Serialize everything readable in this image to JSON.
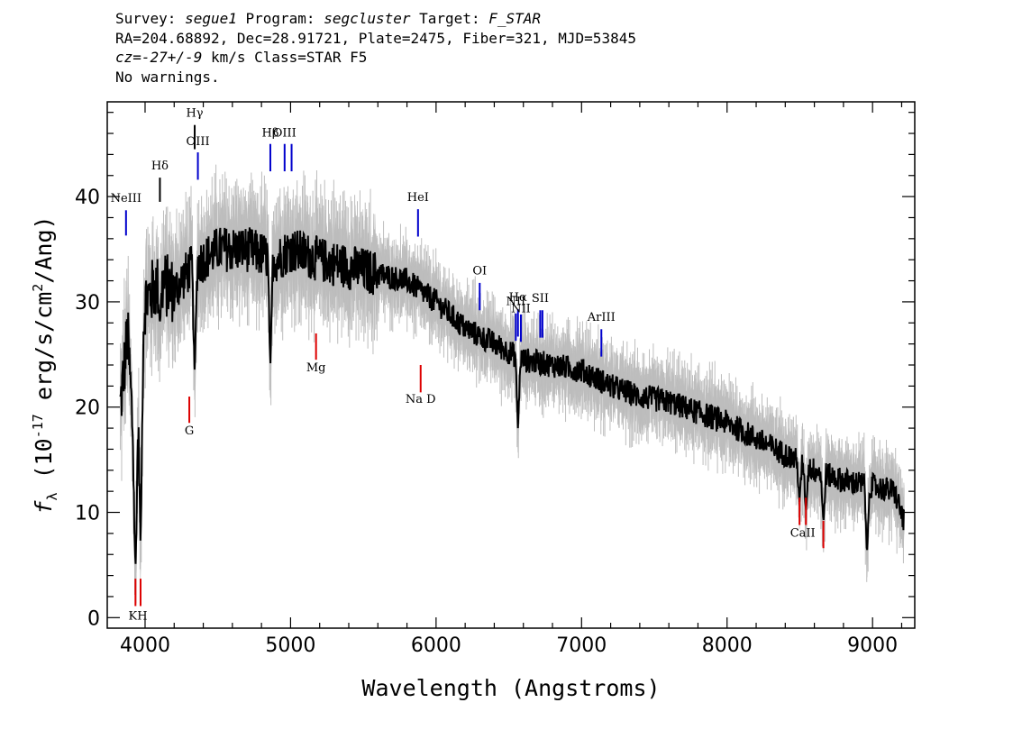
{
  "header": {
    "survey_label": "Survey: ",
    "survey_value": "segue1",
    "program_label": " Program: ",
    "program_value": "segcluster",
    "target_label": " Target: ",
    "target_value": "F_STAR",
    "line2": "RA=204.68892, Dec=28.91721, Plate=2475, Fiber=321, MJD=53845",
    "cz_label": "cz",
    "cz_value": "=-27+/-9",
    "cz_suffix": " km/s Class=STAR F5",
    "line4": "No warnings."
  },
  "chart_data": {
    "type": "line",
    "xlabel": "Wavelength (Angstroms)",
    "ylabel_prefix": "f",
    "ylabel_sub": "λ",
    "ylabel_mid": " (10",
    "ylabel_exp1": "-17",
    "ylabel_mid2": " erg/s/cm",
    "ylabel_exp2": "2",
    "ylabel_suffix": "/Ang)",
    "xlim": [
      3740,
      9290
    ],
    "ylim": [
      -1,
      49
    ],
    "xticks": [
      4000,
      5000,
      6000,
      7000,
      8000,
      9000
    ],
    "yticks": [
      0,
      10,
      20,
      30,
      40
    ],
    "colors": {
      "flux": "#000000",
      "error": "#bdbdbd",
      "emission": "#0000cc",
      "absorption": "#dd0000"
    },
    "spectrum_anchors": {
      "x": [
        3830,
        3880,
        3930,
        4000,
        4100,
        4200,
        4300,
        4400,
        4500,
        4700,
        4900,
        5000,
        5200,
        5500,
        5800,
        6000,
        6200,
        6400,
        6600,
        6800,
        7000,
        7200,
        7400,
        7600,
        7800,
        8000,
        8200,
        8400,
        8600,
        8800,
        9000,
        9150,
        9220
      ],
      "y": [
        20,
        27,
        14,
        30,
        32,
        31,
        33,
        34,
        35,
        35,
        34,
        35,
        34,
        33,
        32,
        30,
        27.5,
        26,
        24.5,
        24,
        23.5,
        22,
        21,
        20.5,
        19.5,
        18.5,
        17,
        15.5,
        14,
        13,
        12.5,
        12,
        9
      ]
    },
    "absorption_features": [
      {
        "x": 3934,
        "y": 4.5
      },
      {
        "x": 3969,
        "y": 6.5
      },
      {
        "x": 4102,
        "y": 28
      },
      {
        "x": 4341,
        "y": 23
      },
      {
        "x": 4861,
        "y": 23.5
      },
      {
        "x": 6563,
        "y": 18
      },
      {
        "x": 8498,
        "y": 11
      },
      {
        "x": 8542,
        "y": 10
      },
      {
        "x": 8662,
        "y": 9
      },
      {
        "x": 8962,
        "y": 6
      }
    ],
    "emission_lines": [
      {
        "name": "NeIII",
        "x": 3869,
        "y0": 36.3,
        "y1": 38.7,
        "label_y": 39.5,
        "color": "emission"
      },
      {
        "name": "Hδ",
        "x": 4102,
        "y0": 39.5,
        "y1": 41.8,
        "label_y": 42.6,
        "color": "black"
      },
      {
        "name": "Hγ",
        "x": 4341,
        "y0": 44.5,
        "y1": 46.8,
        "label_y": 47.6,
        "color": "black"
      },
      {
        "name": "OIII",
        "x": 4363,
        "y0": 41.6,
        "y1": 44.2,
        "label_y": 44.9,
        "color": "emission"
      },
      {
        "name": "Hβ",
        "x": 4861,
        "y0": 42.4,
        "y1": 45,
        "label_y": 45.7,
        "color": "emission"
      },
      {
        "name": "OIII",
        "x": 4959,
        "y0": 42.4,
        "y1": 45,
        "label_y": 45.7,
        "color": "emission"
      },
      {
        "name": "",
        "x": 5007,
        "y0": 42.4,
        "y1": 45,
        "label_y": 0,
        "color": "emission"
      },
      {
        "name": "HeI",
        "x": 5876,
        "y0": 36.2,
        "y1": 38.8,
        "label_y": 39.6,
        "color": "emission"
      },
      {
        "name": "OI",
        "x": 6300,
        "y0": 29.2,
        "y1": 31.8,
        "label_y": 32.6,
        "color": "emission"
      },
      {
        "name": "NII",
        "x": 6548,
        "y0": 26.3,
        "y1": 28.9,
        "label_y": 29.7,
        "color": "emission"
      },
      {
        "name": "Hα",
        "x": 6563,
        "y0": 26.7,
        "y1": 29.3,
        "label_y": 30.1,
        "color": "emission"
      },
      {
        "name": "NII",
        "x": 6583,
        "y0": 26.2,
        "y1": 28.8,
        "label_y": 29.0,
        "color": "emission"
      },
      {
        "name": "SII",
        "x": 6716,
        "y0": 26.6,
        "y1": 29.2,
        "label_y": 30.0,
        "color": "emission"
      },
      {
        "name": "",
        "x": 6731,
        "y0": 26.6,
        "y1": 29.2,
        "label_y": 0,
        "color": "emission"
      },
      {
        "name": "ArIII",
        "x": 7136,
        "y0": 24.8,
        "y1": 27.4,
        "label_y": 28.2,
        "color": "emission"
      }
    ],
    "absorption_lines": [
      {
        "name": "K",
        "x": 3934,
        "y0": 1.1,
        "y1": 3.7
      },
      {
        "name": "H",
        "x": 3969,
        "y0": 1.1,
        "y1": 3.7
      },
      {
        "name": "G",
        "x": 4304,
        "y0": 18.5,
        "y1": 21.0
      },
      {
        "name": "Mg",
        "x": 5175,
        "y0": 24.5,
        "y1": 27.0
      },
      {
        "name": "Na D",
        "x": 5894,
        "y0": 21.4,
        "y1": 24.0
      },
      {
        "name": "",
        "x": 8498,
        "y0": 8.8,
        "y1": 11.4
      },
      {
        "name": "CaII",
        "x": 8542,
        "y0": 8.8,
        "y1": 11.4
      },
      {
        "name": "",
        "x": 8662,
        "y0": 6.6,
        "y1": 9.2
      }
    ],
    "absorption_label_positions": [
      {
        "text": "KH",
        "x": 3951,
        "y": -0.2
      },
      {
        "text": "G",
        "x": 4304,
        "y": 17.4
      },
      {
        "text": "Mg",
        "x": 5175,
        "y": 23.4
      },
      {
        "text": "Na D",
        "x": 5894,
        "y": 20.4
      },
      {
        "text": "CaII",
        "x": 8520,
        "y": 7.7
      }
    ]
  }
}
